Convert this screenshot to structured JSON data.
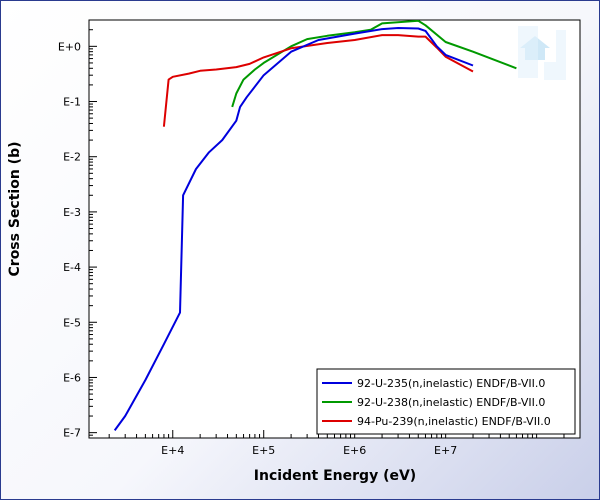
{
  "chart_data": {
    "type": "line",
    "xlabel": "Incident Energy (eV)",
    "ylabel": "Cross Section (b)",
    "x_scale": "log",
    "y_scale": "log",
    "xlim": [
      1200,
      300000000
    ],
    "ylim": [
      8e-08,
      3
    ],
    "x_ticks": [
      {
        "value": 10000,
        "label": "E+4"
      },
      {
        "value": 100000,
        "label": "E+5"
      },
      {
        "value": 1000000,
        "label": "E+6"
      },
      {
        "value": 10000000,
        "label": "E+7"
      }
    ],
    "y_ticks": [
      {
        "value": 1,
        "label": "E+0"
      },
      {
        "value": 0.1,
        "label": "E-1"
      },
      {
        "value": 0.01,
        "label": "E-2"
      },
      {
        "value": 0.001,
        "label": "E-3"
      },
      {
        "value": 0.0001,
        "label": "E-4"
      },
      {
        "value": 1e-05,
        "label": "E-5"
      },
      {
        "value": 1e-06,
        "label": "E-6"
      },
      {
        "value": 1e-07,
        "label": "E-7"
      }
    ],
    "grid": false,
    "legend_position": "bottom-right",
    "series": [
      {
        "name": "92-U-235(n,inelastic) ENDF/B-VII.0",
        "color": "#0000dd",
        "x": [
          2300,
          3000,
          5000,
          8000,
          12000,
          13000,
          18000,
          25000,
          35000,
          50000,
          55000,
          65000,
          100000,
          200000,
          400000,
          1000000,
          2000000,
          3000000,
          5000000,
          6000000,
          8000000,
          10000000,
          20000000
        ],
        "y": [
          1.1e-07,
          2e-07,
          9e-07,
          4e-06,
          1.5e-05,
          0.002,
          0.006,
          0.012,
          0.02,
          0.045,
          0.08,
          0.12,
          0.3,
          0.8,
          1.3,
          1.7,
          2.05,
          2.15,
          2.1,
          1.9,
          1.0,
          0.7,
          0.45
        ]
      },
      {
        "name": "92-U-238(n,inelastic) ENDF/B-VII.0",
        "color": "#009900",
        "x": [
          45000,
          50000,
          60000,
          80000,
          100000,
          200000,
          300000,
          500000,
          1000000,
          1500000,
          2000000,
          5000000,
          6000000,
          10000000,
          20000000,
          60000000
        ],
        "y": [
          0.08,
          0.14,
          0.25,
          0.38,
          0.5,
          1.0,
          1.35,
          1.55,
          1.8,
          2.0,
          2.6,
          2.9,
          2.4,
          1.2,
          0.8,
          0.4
        ]
      },
      {
        "name": "94-Pu-239(n,inelastic) ENDF/B-VII.0",
        "color": "#dd0000",
        "x": [
          8000,
          9000,
          10000,
          15000,
          20000,
          30000,
          50000,
          70000,
          100000,
          200000,
          500000,
          1000000,
          2000000,
          3000000,
          5000000,
          6000000,
          8000000,
          10000000,
          20000000
        ],
        "y": [
          0.035,
          0.25,
          0.28,
          0.32,
          0.36,
          0.38,
          0.42,
          0.48,
          0.63,
          0.92,
          1.15,
          1.3,
          1.6,
          1.6,
          1.5,
          1.5,
          0.95,
          0.65,
          0.35
        ]
      }
    ]
  }
}
